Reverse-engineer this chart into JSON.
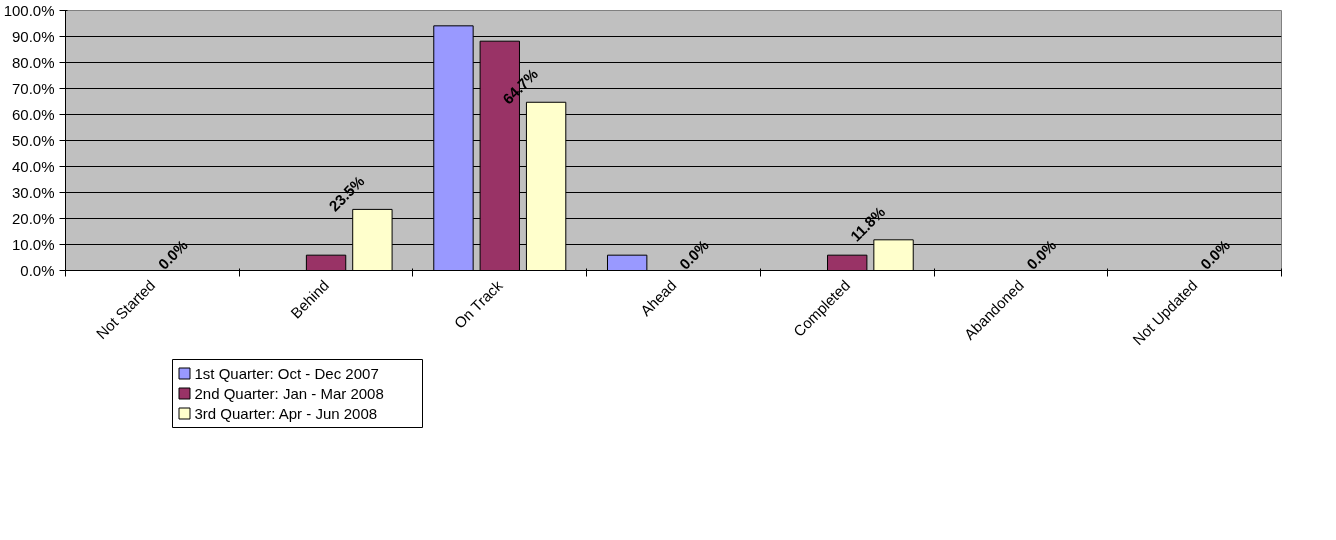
{
  "chart_data": {
    "type": "bar",
    "categories": [
      "Not Started",
      "Behind",
      "On Track",
      "Ahead",
      "Completed",
      "Abandoned",
      "Not Updated"
    ],
    "series": [
      {
        "name": "1st Quarter:  Oct - Dec 2007",
        "color": "#9999ff",
        "values": [
          0,
          0,
          94.1,
          5.9,
          0,
          0,
          0
        ]
      },
      {
        "name": "2nd Quarter:  Jan - Mar 2008",
        "color": "#993366",
        "values": [
          0,
          5.9,
          88.2,
          0,
          5.9,
          0,
          0
        ]
      },
      {
        "name": "3rd Quarter:  Apr - Jun 2008",
        "color": "#ffffcc",
        "values": [
          0,
          23.5,
          64.7,
          0,
          11.8,
          0,
          0
        ],
        "value_labels": [
          "0.0%",
          "23.5%",
          "64.7%",
          "0.0%",
          "11.8%",
          "0.0%",
          "0.0%"
        ]
      }
    ],
    "ylim": [
      0,
      100
    ],
    "yticks": [
      {
        "value": 0,
        "label": "0.0%"
      },
      {
        "value": 10,
        "label": "10.0%"
      },
      {
        "value": 20,
        "label": "20.0%"
      },
      {
        "value": 30,
        "label": "30.0%"
      },
      {
        "value": 40,
        "label": "40.0%"
      },
      {
        "value": 50,
        "label": "50.0%"
      },
      {
        "value": 60,
        "label": "60.0%"
      },
      {
        "value": 70,
        "label": "70.0%"
      },
      {
        "value": 80,
        "label": "80.0%"
      },
      {
        "value": 90,
        "label": "90.0%"
      },
      {
        "value": 100,
        "label": "100.0%"
      }
    ],
    "grid": "y",
    "legend": "bottom left"
  }
}
